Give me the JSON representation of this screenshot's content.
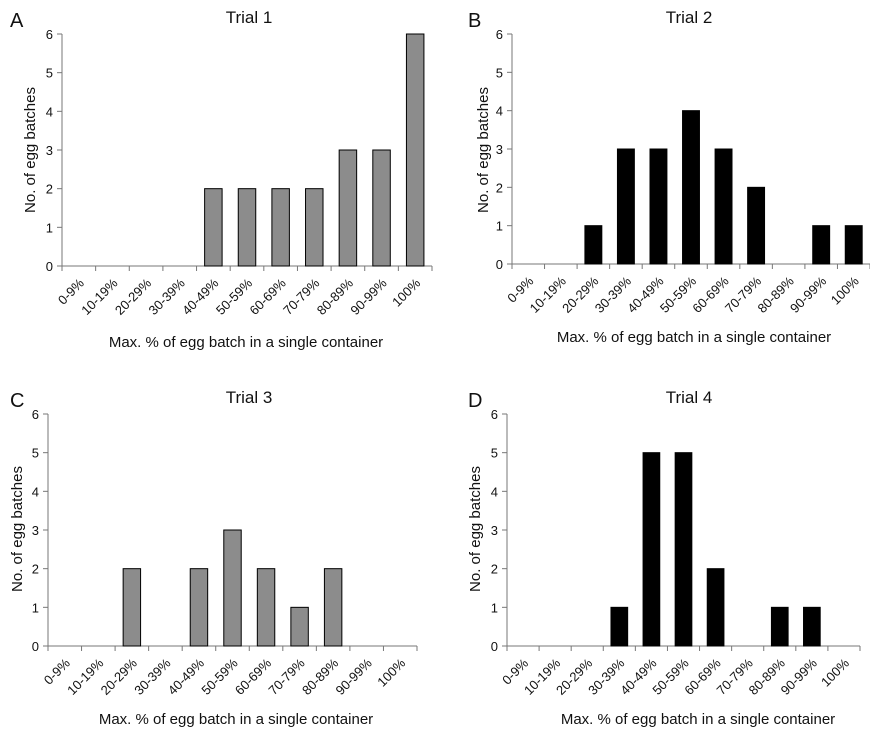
{
  "categories": [
    "0-9%",
    "10-19%",
    "20-29%",
    "30-39%",
    "40-49%",
    "50-59%",
    "60-69%",
    "70-79%",
    "80-89%",
    "90-99%",
    "100%"
  ],
  "chart_data": [
    {
      "type": "bar",
      "panel": "A",
      "title": "Trial 1",
      "xlabel": "Max. % of egg batch in a single container",
      "ylabel": "No. of egg batches",
      "categories": [
        "0-9%",
        "10-19%",
        "20-29%",
        "30-39%",
        "40-49%",
        "50-59%",
        "60-69%",
        "70-79%",
        "80-89%",
        "90-99%",
        "100%"
      ],
      "values": [
        0,
        0,
        0,
        0,
        2,
        2,
        2,
        2,
        3,
        3,
        6
      ],
      "ylim": [
        0,
        6
      ],
      "yticks": [
        0,
        1,
        2,
        3,
        4,
        5,
        6
      ],
      "bar_color": "#8c8c8c",
      "grid": false
    },
    {
      "type": "bar",
      "panel": "B",
      "title": "Trial 2",
      "xlabel": "Max. % of egg batch in a single container",
      "ylabel": "No. of egg batches",
      "categories": [
        "0-9%",
        "10-19%",
        "20-29%",
        "30-39%",
        "40-49%",
        "50-59%",
        "60-69%",
        "70-79%",
        "80-89%",
        "90-99%",
        "100%"
      ],
      "values": [
        0,
        0,
        1,
        3,
        3,
        4,
        3,
        2,
        0,
        1,
        1
      ],
      "ylim": [
        0,
        6
      ],
      "yticks": [
        0,
        1,
        2,
        3,
        4,
        5,
        6
      ],
      "bar_color": "#000000",
      "grid": false
    },
    {
      "type": "bar",
      "panel": "C",
      "title": "Trial 3",
      "xlabel": "Max. % of egg batch in a single container",
      "ylabel": "No. of egg batches",
      "categories": [
        "0-9%",
        "10-19%",
        "20-29%",
        "30-39%",
        "40-49%",
        "50-59%",
        "60-69%",
        "70-79%",
        "80-89%",
        "90-99%",
        "100%"
      ],
      "values": [
        0,
        0,
        2,
        0,
        2,
        3,
        2,
        1,
        2,
        0,
        0
      ],
      "ylim": [
        0,
        6
      ],
      "yticks": [
        0,
        1,
        2,
        3,
        4,
        5,
        6
      ],
      "bar_color": "#8c8c8c",
      "grid": false
    },
    {
      "type": "bar",
      "panel": "D",
      "title": "Trial 4",
      "xlabel": "Max. % of egg batch in a single container",
      "ylabel": "No. of egg batches",
      "categories": [
        "0-9%",
        "10-19%",
        "20-29%",
        "30-39%",
        "40-49%",
        "50-59%",
        "60-69%",
        "70-79%",
        "80-89%",
        "90-99%",
        "100%"
      ],
      "values": [
        0,
        0,
        0,
        1,
        5,
        5,
        2,
        0,
        1,
        1,
        0
      ],
      "ylim": [
        0,
        6
      ],
      "yticks": [
        0,
        1,
        2,
        3,
        4,
        5,
        6
      ],
      "bar_color": "#000000",
      "grid": false
    }
  ]
}
